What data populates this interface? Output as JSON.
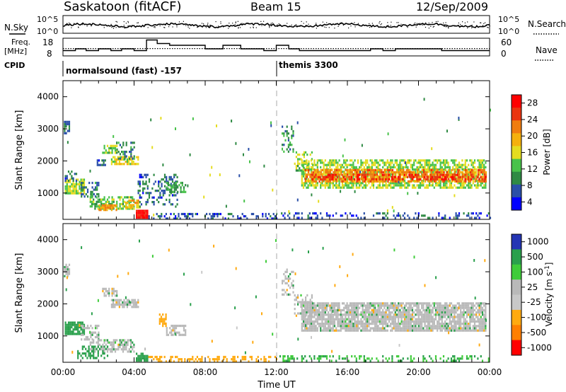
{
  "header": {
    "station": "Saskatoon (fitACF)",
    "beam": "Beam 15",
    "date": "12/Sep/2009"
  },
  "top_panels": {
    "nsky_label": "N.Sky",
    "nsearch_label": "N.Search",
    "freq_label_line1": "Freq.",
    "freq_label_line2": "[MHz]",
    "nave_label": "Nave",
    "cpid_label": "CPID",
    "noise_ticks_left": [
      "10^5",
      "10^0"
    ],
    "noise_ticks_right": [
      "10^5",
      "10^0"
    ],
    "freq_ticks": [
      "18",
      "8"
    ],
    "nave_ticks": [
      "60",
      "0"
    ],
    "cpid_segments": [
      {
        "label": "normalsound (fast) -157",
        "start_hour": 0
      },
      {
        "label": "themis 3300",
        "start_hour": 12.0
      }
    ]
  },
  "colors": {
    "power_scale": [
      "#0000ff",
      "#2a4fa8",
      "#2f8a44",
      "#48c24a",
      "#e5dc1f",
      "#f5b00c",
      "#f07d0f",
      "#ea3510",
      "#ff0000"
    ],
    "velocity_scale": [
      "#2435b4",
      "#2aa04c",
      "#3fcc3a",
      "#b9b9b9",
      "#c8c8c8",
      "#ffaa10",
      "#ff7f00",
      "#ff0000"
    ]
  },
  "chart_data": [
    {
      "type": "heatmap",
      "name": "power",
      "ylabel": "Slant Range [km]",
      "xlim": [
        0,
        24
      ],
      "ylim": [
        180,
        4500
      ],
      "yticks": [
        "1000",
        "2000",
        "3000",
        "4000"
      ],
      "colorbar_label": "Power [dB]",
      "colorbar_ticks": [
        "28",
        "24",
        "20",
        "16",
        "12",
        "8",
        "4"
      ],
      "colorbar_range": [
        0,
        30
      ],
      "blobs": [
        {
          "x0": 0.05,
          "x1": 0.4,
          "y0": 2850,
          "y1": 3250,
          "v": 6,
          "d": 0.8
        },
        {
          "x0": 0.1,
          "x1": 1.2,
          "y0": 980,
          "y1": 1450,
          "v": 14,
          "d": 0.75
        },
        {
          "x0": 0.1,
          "x1": 0.8,
          "y0": 1400,
          "y1": 1700,
          "v": 6,
          "d": 0.5
        },
        {
          "x0": 1.0,
          "x1": 2.0,
          "y0": 900,
          "y1": 1350,
          "v": 8,
          "d": 0.5
        },
        {
          "x0": 1.9,
          "x1": 2.4,
          "y0": 1850,
          "y1": 2050,
          "v": 6,
          "d": 0.5
        },
        {
          "x0": 2.2,
          "x1": 3.0,
          "y0": 2250,
          "y1": 2500,
          "v": 12,
          "d": 0.7
        },
        {
          "x0": 2.7,
          "x1": 4.2,
          "y0": 1900,
          "y1": 2150,
          "v": 15,
          "d": 0.7
        },
        {
          "x0": 3.0,
          "x1": 4.0,
          "y0": 2100,
          "y1": 2600,
          "v": 8,
          "d": 0.4
        },
        {
          "x0": 1.5,
          "x1": 4.0,
          "y0": 500,
          "y1": 900,
          "v": 12,
          "d": 0.6
        },
        {
          "x0": 2.0,
          "x1": 3.0,
          "y0": 450,
          "y1": 650,
          "v": 20,
          "d": 0.7
        },
        {
          "x0": 3.5,
          "x1": 4.3,
          "y0": 550,
          "y1": 800,
          "v": 18,
          "d": 0.6
        },
        {
          "x0": 4.1,
          "x1": 4.8,
          "y0": 200,
          "y1": 480,
          "v": 29,
          "d": 0.95
        },
        {
          "x0": 4.2,
          "x1": 6.4,
          "y0": 600,
          "y1": 1600,
          "v": 6,
          "d": 0.3
        },
        {
          "x0": 5.8,
          "x1": 6.9,
          "y0": 1050,
          "y1": 1350,
          "v": 10,
          "d": 0.6
        },
        {
          "x0": 4.8,
          "x1": 12.0,
          "y0": 190,
          "y1": 380,
          "v": 5,
          "d": 0.35
        },
        {
          "x0": 12.3,
          "x1": 13.0,
          "y0": 2300,
          "y1": 3100,
          "v": 9,
          "d": 0.35
        },
        {
          "x0": 13.0,
          "x1": 14.0,
          "y0": 1600,
          "y1": 2300,
          "v": 12,
          "d": 0.45
        },
        {
          "x0": 13.4,
          "x1": 23.8,
          "y0": 1150,
          "y1": 2050,
          "v": 13,
          "d": 0.65
        },
        {
          "x0": 13.6,
          "x1": 23.8,
          "y0": 1350,
          "y1": 1750,
          "v": 21,
          "d": 0.7
        },
        {
          "x0": 14.0,
          "x1": 23.8,
          "y0": 1450,
          "y1": 1600,
          "v": 26,
          "d": 0.35
        },
        {
          "x0": 12.0,
          "x1": 24.0,
          "y0": 190,
          "y1": 400,
          "v": 5,
          "d": 0.25
        }
      ]
    },
    {
      "type": "heatmap",
      "name": "velocity",
      "ylabel": "Slant Range [km]",
      "xlabel": "Time UT",
      "xlim": [
        0,
        24
      ],
      "ylim": [
        180,
        4500
      ],
      "xticks": [
        "00:00",
        "04:00",
        "08:00",
        "12:00",
        "16:00",
        "20:00",
        "00:00"
      ],
      "yticks": [
        "1000",
        "2000",
        "3000",
        "4000"
      ],
      "colorbar_label": "Velocity [m s^-1]",
      "colorbar_ticks": [
        "1000",
        "500",
        "100",
        "25",
        "-25",
        "-100",
        "-500",
        "-1000"
      ],
      "blobs": [
        {
          "x0": 0.05,
          "x1": 0.4,
          "y0": 2850,
          "y1": 3250,
          "v": 0,
          "d": 0.8
        },
        {
          "x0": 0.1,
          "x1": 1.2,
          "y0": 1050,
          "y1": 1450,
          "v": 150,
          "d": 0.85
        },
        {
          "x0": 1.0,
          "x1": 2.0,
          "y0": 900,
          "y1": 1350,
          "v": 0,
          "d": 0.5
        },
        {
          "x0": 2.2,
          "x1": 3.0,
          "y0": 2250,
          "y1": 2500,
          "v": 0,
          "d": 0.7
        },
        {
          "x0": 2.7,
          "x1": 4.2,
          "y0": 1900,
          "y1": 2150,
          "v": 0,
          "d": 0.7
        },
        {
          "x0": 1.5,
          "x1": 4.0,
          "y0": 500,
          "y1": 900,
          "v": 0,
          "d": 0.6
        },
        {
          "x0": 0.8,
          "x1": 2.5,
          "y0": 300,
          "y1": 700,
          "v": 150,
          "d": 0.4
        },
        {
          "x0": 4.1,
          "x1": 4.8,
          "y0": 200,
          "y1": 480,
          "v": 150,
          "d": 0.8
        },
        {
          "x0": 5.4,
          "x1": 5.8,
          "y0": 1300,
          "y1": 1700,
          "v": -300,
          "d": 0.6
        },
        {
          "x0": 5.8,
          "x1": 6.9,
          "y0": 1050,
          "y1": 1350,
          "v": 0,
          "d": 0.6
        },
        {
          "x0": 4.8,
          "x1": 12.0,
          "y0": 190,
          "y1": 380,
          "v": -150,
          "d": 0.4
        },
        {
          "x0": 12.3,
          "x1": 13.0,
          "y0": 2300,
          "y1": 3100,
          "v": 0,
          "d": 0.35
        },
        {
          "x0": 13.0,
          "x1": 14.0,
          "y0": 1600,
          "y1": 2300,
          "v": 0,
          "d": 0.45
        },
        {
          "x0": 13.4,
          "x1": 23.8,
          "y0": 1150,
          "y1": 2050,
          "v": 0,
          "d": 0.85
        },
        {
          "x0": 12.0,
          "x1": 24.0,
          "y0": 190,
          "y1": 400,
          "v": 100,
          "d": 0.3
        }
      ]
    },
    {
      "type": "line",
      "name": "noise",
      "note_series": [
        "N.Sky",
        "N.Search"
      ]
    },
    {
      "type": "line",
      "name": "frequency",
      "step_x": [
        0,
        0.7,
        1.3,
        2.0,
        2.7,
        3.3,
        4.0,
        4.7,
        5.3,
        6.0,
        8.0,
        9.0,
        10.0,
        11.3,
        12.0,
        12.7,
        13.3,
        14.7,
        17.3,
        18.0,
        18.7,
        21.3,
        24.0
      ],
      "step_y": [
        11,
        12,
        11,
        12,
        11,
        12,
        11,
        17,
        15,
        14,
        12,
        14,
        12,
        11,
        14,
        12,
        11,
        11,
        12,
        11,
        12,
        11,
        11
      ],
      "nave": 25
    }
  ]
}
